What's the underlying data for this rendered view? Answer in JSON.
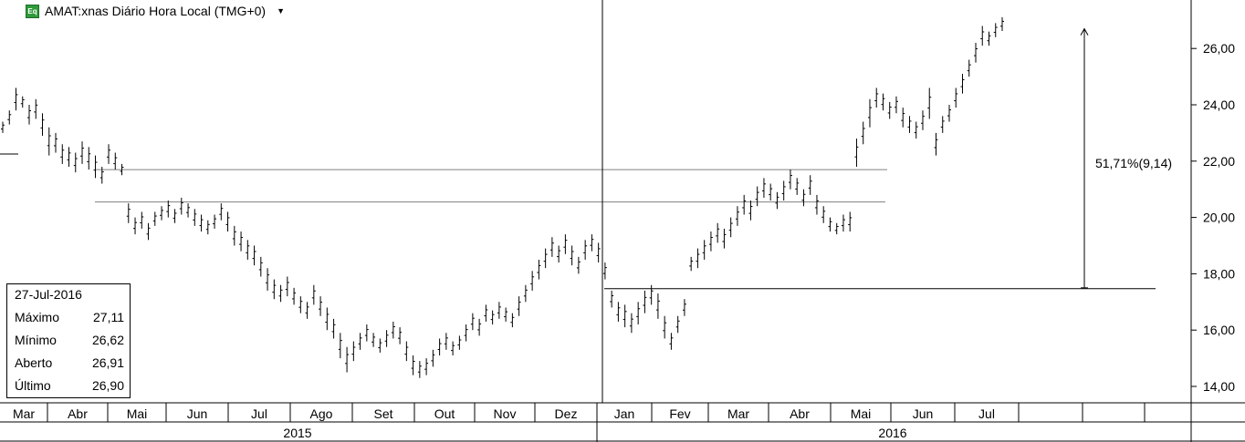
{
  "header": {
    "badge": "Eq",
    "title": "AMAT:xnas Diário Hora Local (TMG+0)"
  },
  "info": {
    "date": "27-Jul-2016",
    "rows": [
      {
        "label": "Máximo",
        "value": "27,11"
      },
      {
        "label": "Mínimo",
        "value": "26,62"
      },
      {
        "label": "Aberto",
        "value": "26,91"
      },
      {
        "label": "Último",
        "value": "26,90"
      }
    ]
  },
  "measure": {
    "label": "51,71%(9,14)",
    "from": 17.5,
    "to": 26.7
  },
  "colors": {
    "bars": "#000000",
    "lines": "#808080",
    "grid": "#000000"
  },
  "chart_data": {
    "type": "ohlc",
    "title": "AMAT:xnas Diário Hora Local (TMG+0)",
    "ylim": [
      13.5,
      27.3
    ],
    "y_ticks": [
      "14,00",
      "16,00",
      "18,00",
      "20,00",
      "22,00",
      "24,00",
      "26,00"
    ],
    "y_tick_values": [
      14,
      16,
      18,
      20,
      22,
      24,
      26
    ],
    "month_labels": [
      "Mar",
      "Abr",
      "Mai",
      "Jun",
      "Jul",
      "Ago",
      "Set",
      "Out",
      "Nov",
      "Dez",
      "Jan",
      "Fev",
      "Mar",
      "Abr",
      "Mai",
      "Jun",
      "Jul"
    ],
    "year_labels": [
      "2015",
      "2016"
    ],
    "series": [
      {
        "values": [
          [
            23.4,
            23.0
          ],
          [
            23.8,
            23.3
          ],
          [
            24.6,
            23.8
          ],
          [
            24.3,
            23.9
          ],
          [
            24.0,
            23.3
          ],
          [
            24.2,
            23.5
          ],
          [
            23.7,
            22.9
          ],
          [
            23.2,
            22.2
          ],
          [
            23.0,
            22.3
          ],
          [
            22.6,
            21.9
          ],
          [
            22.5,
            21.8
          ],
          [
            22.3,
            21.6
          ],
          [
            22.7,
            21.9
          ],
          [
            22.5,
            21.7
          ],
          [
            22.2,
            21.4
          ],
          [
            21.8,
            21.2
          ],
          [
            22.6,
            21.9
          ],
          [
            22.3,
            21.7
          ],
          [
            21.9,
            21.5
          ],
          [
            20.5,
            19.8
          ],
          [
            20.0,
            19.4
          ],
          [
            20.2,
            19.6
          ],
          [
            19.8,
            19.2
          ],
          [
            20.2,
            19.7
          ],
          [
            20.4,
            19.9
          ],
          [
            20.6,
            20.0
          ],
          [
            20.3,
            19.8
          ],
          [
            20.7,
            20.1
          ],
          [
            20.5,
            20.0
          ],
          [
            20.3,
            19.7
          ],
          [
            20.1,
            19.5
          ],
          [
            19.9,
            19.4
          ],
          [
            20.1,
            19.6
          ],
          [
            20.5,
            19.9
          ],
          [
            20.2,
            19.5
          ],
          [
            19.7,
            19.0
          ],
          [
            19.5,
            18.8
          ],
          [
            19.2,
            18.5
          ],
          [
            19.0,
            18.3
          ],
          [
            18.6,
            17.9
          ],
          [
            18.2,
            17.4
          ],
          [
            17.8,
            17.1
          ],
          [
            17.6,
            17.0
          ],
          [
            17.9,
            17.2
          ],
          [
            17.5,
            16.9
          ],
          [
            17.2,
            16.6
          ],
          [
            17.0,
            16.4
          ],
          [
            17.6,
            16.9
          ],
          [
            17.2,
            16.5
          ],
          [
            16.8,
            16.0
          ],
          [
            16.4,
            15.7
          ],
          [
            15.9,
            15.0
          ],
          [
            15.4,
            14.5
          ],
          [
            15.6,
            14.9
          ],
          [
            15.9,
            15.3
          ],
          [
            16.2,
            15.6
          ],
          [
            15.9,
            15.4
          ],
          [
            15.7,
            15.2
          ],
          [
            16.0,
            15.4
          ],
          [
            16.3,
            15.7
          ],
          [
            16.1,
            15.5
          ],
          [
            15.6,
            14.9
          ],
          [
            15.1,
            14.4
          ],
          [
            14.9,
            14.3
          ],
          [
            15.0,
            14.4
          ],
          [
            15.3,
            14.7
          ],
          [
            15.7,
            15.1
          ],
          [
            15.9,
            15.3
          ],
          [
            15.6,
            15.1
          ],
          [
            15.8,
            15.3
          ],
          [
            16.2,
            15.6
          ],
          [
            16.6,
            16.0
          ],
          [
            16.4,
            15.8
          ],
          [
            16.9,
            16.3
          ],
          [
            16.7,
            16.2
          ],
          [
            17.0,
            16.4
          ],
          [
            16.8,
            16.3
          ],
          [
            16.6,
            16.1
          ],
          [
            17.2,
            16.5
          ],
          [
            17.6,
            17.0
          ],
          [
            18.1,
            17.4
          ],
          [
            18.5,
            17.8
          ],
          [
            18.9,
            18.2
          ],
          [
            19.3,
            18.6
          ],
          [
            19.0,
            18.4
          ],
          [
            19.4,
            18.7
          ],
          [
            19.0,
            18.3
          ],
          [
            18.6,
            18.0
          ],
          [
            19.2,
            18.5
          ],
          [
            19.4,
            18.8
          ],
          [
            19.1,
            18.4
          ],
          [
            18.4,
            17.8
          ],
          [
            17.4,
            16.8
          ],
          [
            17.0,
            16.3
          ],
          [
            16.9,
            16.1
          ],
          [
            16.6,
            15.9
          ],
          [
            17.0,
            16.2
          ],
          [
            17.4,
            16.6
          ],
          [
            17.6,
            16.9
          ],
          [
            17.3,
            16.4
          ],
          [
            16.5,
            15.7
          ],
          [
            15.9,
            15.3
          ],
          [
            16.5,
            15.9
          ],
          [
            17.1,
            16.5
          ],
          [
            18.6,
            18.1
          ],
          [
            18.9,
            18.2
          ],
          [
            19.2,
            18.5
          ],
          [
            19.5,
            18.8
          ],
          [
            19.8,
            19.1
          ],
          [
            19.6,
            18.9
          ],
          [
            20.0,
            19.3
          ],
          [
            20.4,
            19.7
          ],
          [
            20.8,
            20.1
          ],
          [
            20.6,
            19.9
          ],
          [
            21.1,
            20.4
          ],
          [
            21.4,
            20.7
          ],
          [
            21.2,
            20.6
          ],
          [
            20.9,
            20.3
          ],
          [
            21.3,
            20.6
          ],
          [
            21.7,
            21.0
          ],
          [
            21.4,
            20.8
          ],
          [
            21.0,
            20.4
          ],
          [
            21.5,
            20.8
          ],
          [
            20.8,
            20.1
          ],
          [
            20.4,
            19.8
          ],
          [
            20.0,
            19.5
          ],
          [
            19.8,
            19.4
          ],
          [
            20.1,
            19.5
          ],
          [
            20.2,
            19.5
          ],
          [
            22.8,
            21.8
          ],
          [
            23.4,
            22.6
          ],
          [
            24.2,
            23.2
          ],
          [
            24.6,
            23.9
          ],
          [
            24.4,
            23.8
          ],
          [
            24.1,
            23.5
          ],
          [
            24.3,
            23.7
          ],
          [
            23.9,
            23.2
          ],
          [
            23.6,
            23.0
          ],
          [
            23.4,
            22.8
          ],
          [
            23.8,
            23.1
          ],
          [
            24.6,
            23.5
          ],
          [
            23.0,
            22.2
          ],
          [
            23.6,
            23.0
          ],
          [
            24.0,
            23.4
          ],
          [
            24.6,
            23.9
          ],
          [
            25.1,
            24.4
          ],
          [
            25.6,
            25.0
          ],
          [
            26.2,
            25.5
          ],
          [
            26.8,
            26.1
          ],
          [
            26.6,
            26.1
          ],
          [
            26.9,
            26.4
          ],
          [
            27.11,
            26.62
          ]
        ]
      }
    ]
  }
}
